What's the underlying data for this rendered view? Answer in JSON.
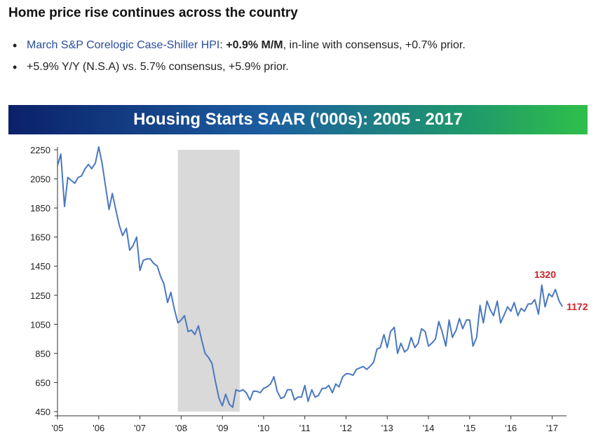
{
  "headline": "Home price rise continues across the country",
  "bullet1": {
    "link_text": "March S&P Corelogic Case-Shiller HPI",
    "colon": ":",
    "bold_text": "+0.9% M/M",
    "rest": ", in-line with consensus, +0.7% prior."
  },
  "bullet2": {
    "text": "+5.9% Y/Y (N.S.A) vs. 5.7% consensus, +5.9% prior."
  },
  "colors": {
    "line": "#4a78bf",
    "recession": "#d9d9d9",
    "annotation": "#d0202a"
  },
  "chart_data": {
    "type": "line",
    "title": "Housing Starts SAAR ('000s): 2005 - 2017",
    "xlabel": "",
    "ylabel": "",
    "ylim": [
      450,
      2250
    ],
    "yticks": [
      2250,
      2050,
      1850,
      1650,
      1450,
      1250,
      1050,
      850,
      650,
      450
    ],
    "xlim": [
      2005.0,
      2017.35
    ],
    "xticks": [
      {
        "label": "'05",
        "value": 2005.0
      },
      {
        "label": "'06",
        "value": 2006.0
      },
      {
        "label": "'07",
        "value": 2007.0
      },
      {
        "label": "'08",
        "value": 2008.0
      },
      {
        "label": "'09",
        "value": 2009.0
      },
      {
        "label": "'10",
        "value": 2010.0
      },
      {
        "label": "'11",
        "value": 2011.0
      },
      {
        "label": "'12",
        "value": 2012.0
      },
      {
        "label": "'13",
        "value": 2013.0
      },
      {
        "label": "'14",
        "value": 2014.0
      },
      {
        "label": "'15",
        "value": 2015.0
      },
      {
        "label": "'16",
        "value": 2016.0
      },
      {
        "label": "'17",
        "value": 2017.0
      }
    ],
    "grid": false,
    "recession": [
      2007.92,
      2009.42
    ],
    "annotations": [
      {
        "text": "1320",
        "x": 2016.83,
        "y": 1320,
        "position": "above"
      },
      {
        "text": "1172",
        "x": 2017.25,
        "y": 1172,
        "position": "right"
      }
    ],
    "series": [
      {
        "x": [
          2005.0,
          2005.08,
          2005.17,
          2005.25,
          2005.33,
          2005.42,
          2005.5,
          2005.58,
          2005.67,
          2005.75,
          2005.83,
          2005.92,
          2006.0,
          2006.08,
          2006.17,
          2006.25,
          2006.33,
          2006.42,
          2006.5,
          2006.58,
          2006.67,
          2006.75,
          2006.83,
          2006.92,
          2007.0,
          2007.08,
          2007.17,
          2007.25,
          2007.33,
          2007.42,
          2007.5,
          2007.58,
          2007.67,
          2007.75,
          2007.83,
          2007.92,
          2008.0,
          2008.08,
          2008.17,
          2008.25,
          2008.33,
          2008.42,
          2008.5,
          2008.58,
          2008.67,
          2008.75,
          2008.83,
          2008.92,
          2009.0,
          2009.08,
          2009.17,
          2009.25,
          2009.33,
          2009.42,
          2009.5,
          2009.58,
          2009.67,
          2009.75,
          2009.83,
          2009.92,
          2010.0,
          2010.08,
          2010.17,
          2010.25,
          2010.33,
          2010.42,
          2010.5,
          2010.58,
          2010.67,
          2010.75,
          2010.83,
          2010.92,
          2011.0,
          2011.08,
          2011.17,
          2011.25,
          2011.33,
          2011.42,
          2011.5,
          2011.58,
          2011.67,
          2011.75,
          2011.83,
          2011.92,
          2012.0,
          2012.08,
          2012.17,
          2012.25,
          2012.33,
          2012.42,
          2012.5,
          2012.58,
          2012.67,
          2012.75,
          2012.83,
          2012.92,
          2013.0,
          2013.08,
          2013.17,
          2013.25,
          2013.33,
          2013.42,
          2013.5,
          2013.58,
          2013.67,
          2013.75,
          2013.83,
          2013.92,
          2014.0,
          2014.08,
          2014.17,
          2014.25,
          2014.33,
          2014.42,
          2014.5,
          2014.58,
          2014.67,
          2014.75,
          2014.83,
          2014.92,
          2015.0,
          2015.08,
          2015.17,
          2015.25,
          2015.33,
          2015.42,
          2015.5,
          2015.58,
          2015.67,
          2015.75,
          2015.83,
          2015.92,
          2016.0,
          2016.08,
          2016.17,
          2016.25,
          2016.33,
          2016.42,
          2016.5,
          2016.58,
          2016.67,
          2016.75,
          2016.83,
          2016.92,
          2017.0,
          2017.08,
          2017.17,
          2017.25
        ],
        "values": [
          2140,
          2220,
          1860,
          2060,
          2040,
          2020,
          2060,
          2070,
          2120,
          2150,
          2120,
          2160,
          2270,
          2160,
          1990,
          1840,
          1950,
          1830,
          1730,
          1660,
          1710,
          1560,
          1590,
          1650,
          1420,
          1490,
          1500,
          1500,
          1470,
          1450,
          1380,
          1330,
          1200,
          1270,
          1160,
          1060,
          1080,
          1110,
          1000,
          1010,
          980,
          1040,
          940,
          850,
          820,
          780,
          660,
          540,
          490,
          570,
          500,
          480,
          600,
          590,
          600,
          580,
          530,
          590,
          590,
          580,
          610,
          620,
          640,
          690,
          590,
          540,
          550,
          600,
          600,
          530,
          550,
          550,
          630,
          520,
          600,
          550,
          560,
          610,
          610,
          630,
          580,
          640,
          620,
          690,
          710,
          710,
          700,
          740,
          750,
          760,
          740,
          760,
          790,
          880,
          890,
          980,
          890,
          1000,
          1030,
          850,
          920,
          860,
          880,
          960,
          890,
          920,
          1020,
          1000,
          900,
          920,
          950,
          1070,
          1000,
          900,
          1080,
          960,
          1010,
          1090,
          1020,
          1080,
          1080,
          900,
          960,
          1180,
          1060,
          1210,
          1150,
          1110,
          1210,
          1060,
          1110,
          1170,
          1140,
          1200,
          1110,
          1160,
          1140,
          1190,
          1190,
          1220,
          1120,
          1320,
          1170,
          1260,
          1240,
          1290,
          1210,
          1172
        ]
      }
    ]
  }
}
